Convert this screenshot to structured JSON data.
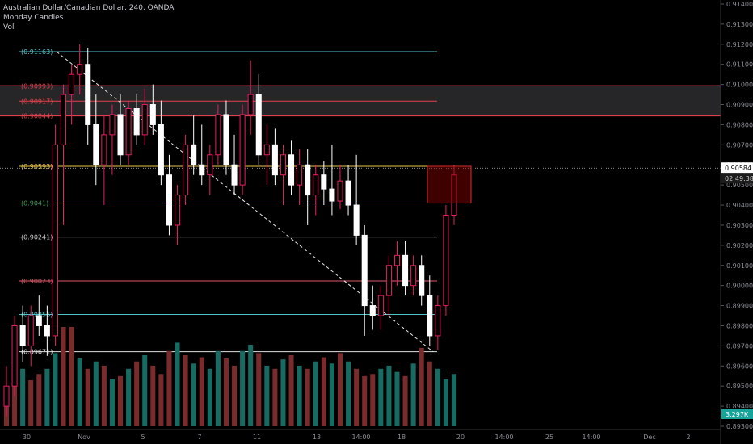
{
  "chart_data": {
    "type": "candlestick",
    "title": "Australian Dollar/Canadian Dollar, 240, OANDA",
    "legend_lines": [
      "Monday Candles",
      "Vol"
    ],
    "y_range": [
      0.893,
      0.914
    ],
    "y_ticks": [
      "0.91400",
      "0.91300",
      "0.91200",
      "0.91100",
      "0.91000",
      "0.90900",
      "0.90800",
      "0.90700",
      "0.90600",
      "0.90500",
      "0.90400",
      "0.90300",
      "0.90200",
      "0.90100",
      "0.90000",
      "0.89900",
      "0.89800",
      "0.89700",
      "0.89600",
      "0.89500",
      "0.89400",
      "0.89300"
    ],
    "x_labels": [
      "30",
      "Nov",
      "5",
      "7",
      "11",
      "13",
      "14:00",
      "18",
      "20",
      "14:00",
      "25",
      "14:00",
      "Dec",
      "2"
    ],
    "current_price_label": "0.90584",
    "countdown_label": "02:49:38",
    "volume_label": "3.297K",
    "levels": [
      {
        "label": "(0.91163)",
        "value": 0.91163,
        "color": "#4fc3c7"
      },
      {
        "label": "(0.90993)",
        "value": 0.90993,
        "color": "#e0404a"
      },
      {
        "label": "(0.90917)",
        "value": 0.90917,
        "color": "#e0404a"
      },
      {
        "label": "(0.90844)",
        "value": 0.90844,
        "color": "#e0404a"
      },
      {
        "label": "(0.90593)",
        "value": 0.90593,
        "color": "#e8c84a"
      },
      {
        "label": "(0.9041)",
        "value": 0.9041,
        "color": "#3f9a5a"
      },
      {
        "label": "(0.90241)",
        "value": 0.90241,
        "color": "#c8c8c8"
      },
      {
        "label": "(0.90023)",
        "value": 0.90023,
        "color": "#e05a6a"
      },
      {
        "label": "(0.89856)",
        "value": 0.89856,
        "color": "#4fc3c7"
      },
      {
        "label": "(0.89671)",
        "value": 0.89671,
        "color": "#e0e0e0"
      }
    ],
    "zone": {
      "from": 0.90844,
      "to": 0.90993
    },
    "box": {
      "from": 0.9041,
      "to": 0.90593
    },
    "trendline": {
      "from": 0.91163,
      "to": 0.89671
    },
    "candles": [
      [
        0.894,
        0.896,
        0.8935,
        0.895
      ],
      [
        0.895,
        0.8985,
        0.8945,
        0.898
      ],
      [
        0.898,
        0.899,
        0.8962,
        0.897
      ],
      [
        0.897,
        0.899,
        0.896,
        0.8985
      ],
      [
        0.8985,
        0.8995,
        0.8975,
        0.898
      ],
      [
        0.898,
        0.899,
        0.8965,
        0.8975
      ],
      [
        0.8975,
        0.908,
        0.897,
        0.907
      ],
      [
        0.907,
        0.91,
        0.903,
        0.9095
      ],
      [
        0.9095,
        0.911,
        0.908,
        0.9105
      ],
      [
        0.9105,
        0.912,
        0.9095,
        0.911
      ],
      [
        0.911,
        0.9118,
        0.907,
        0.908
      ],
      [
        0.908,
        0.9095,
        0.905,
        0.906
      ],
      [
        0.906,
        0.9085,
        0.904,
        0.9075
      ],
      [
        0.9075,
        0.909,
        0.9055,
        0.9085
      ],
      [
        0.9085,
        0.9095,
        0.906,
        0.9065
      ],
      [
        0.9065,
        0.9092,
        0.906,
        0.9088
      ],
      [
        0.9088,
        0.9095,
        0.907,
        0.9075
      ],
      [
        0.9075,
        0.9098,
        0.907,
        0.909
      ],
      [
        0.909,
        0.91,
        0.9075,
        0.908
      ],
      [
        0.908,
        0.9092,
        0.905,
        0.9055
      ],
      [
        0.9055,
        0.9065,
        0.9025,
        0.903
      ],
      [
        0.903,
        0.905,
        0.902,
        0.9045
      ],
      [
        0.9045,
        0.9075,
        0.904,
        0.907
      ],
      [
        0.907,
        0.9085,
        0.9055,
        0.906
      ],
      [
        0.906,
        0.908,
        0.905,
        0.9055
      ],
      [
        0.9055,
        0.907,
        0.9045,
        0.9065
      ],
      [
        0.9065,
        0.909,
        0.906,
        0.9085
      ],
      [
        0.9085,
        0.9092,
        0.9055,
        0.906
      ],
      [
        0.906,
        0.9075,
        0.9045,
        0.905
      ],
      [
        0.905,
        0.909,
        0.9045,
        0.9085
      ],
      [
        0.9085,
        0.9112,
        0.9075,
        0.9095
      ],
      [
        0.9095,
        0.9105,
        0.906,
        0.9065
      ],
      [
        0.9065,
        0.908,
        0.905,
        0.907
      ],
      [
        0.907,
        0.9078,
        0.905,
        0.9055
      ],
      [
        0.9055,
        0.907,
        0.904,
        0.9065
      ],
      [
        0.9065,
        0.9072,
        0.9045,
        0.905
      ],
      [
        0.905,
        0.9068,
        0.904,
        0.906
      ],
      [
        0.906,
        0.9068,
        0.903,
        0.9045
      ],
      [
        0.9045,
        0.906,
        0.9035,
        0.9055
      ],
      [
        0.9055,
        0.9062,
        0.904,
        0.9048
      ],
      [
        0.9048,
        0.907,
        0.9035,
        0.9042
      ],
      [
        0.9042,
        0.906,
        0.9038,
        0.9052
      ],
      [
        0.9052,
        0.906,
        0.9035,
        0.904
      ],
      [
        0.904,
        0.9065,
        0.902,
        0.9025
      ],
      [
        0.9025,
        0.903,
        0.8975,
        0.899
      ],
      [
        0.899,
        0.9,
        0.8978,
        0.8985
      ],
      [
        0.8985,
        0.9,
        0.8978,
        0.8995
      ],
      [
        0.8995,
        0.9015,
        0.8985,
        0.901
      ],
      [
        0.901,
        0.9022,
        0.9,
        0.9015
      ],
      [
        0.9015,
        0.9022,
        0.8995,
        0.9
      ],
      [
        0.9,
        0.9015,
        0.8995,
        0.901
      ],
      [
        0.901,
        0.9015,
        0.899,
        0.8995
      ],
      [
        0.8995,
        0.9005,
        0.897,
        0.8975
      ],
      [
        0.8975,
        0.8995,
        0.8968,
        0.899
      ],
      [
        0.899,
        0.904,
        0.8985,
        0.9035
      ],
      [
        0.9035,
        0.906,
        0.903,
        0.9055
      ]
    ],
    "volumes": [
      30,
      44,
      55,
      44,
      50,
      55,
      70,
      95,
      95,
      65,
      55,
      62,
      58,
      45,
      48,
      55,
      62,
      68,
      58,
      50,
      72,
      80,
      68,
      60,
      66,
      55,
      72,
      65,
      58,
      72,
      78,
      70,
      58,
      55,
      64,
      68,
      58,
      55,
      62,
      66,
      60,
      70,
      62,
      55,
      48,
      50,
      55,
      58,
      52,
      48,
      60,
      75,
      62,
      55,
      45,
      50
    ],
    "volume_up": [
      false,
      false,
      true,
      false,
      false,
      true,
      true,
      false,
      false,
      true,
      false,
      true,
      false,
      true,
      false,
      true,
      false,
      true,
      false,
      false,
      false,
      true,
      false,
      true,
      false,
      true,
      true,
      false,
      false,
      true,
      true,
      false,
      true,
      false,
      true,
      false,
      true,
      false,
      true,
      false,
      true,
      false,
      true,
      false,
      false,
      false,
      true,
      true,
      true,
      false,
      true,
      false,
      false,
      true,
      true,
      true
    ]
  }
}
